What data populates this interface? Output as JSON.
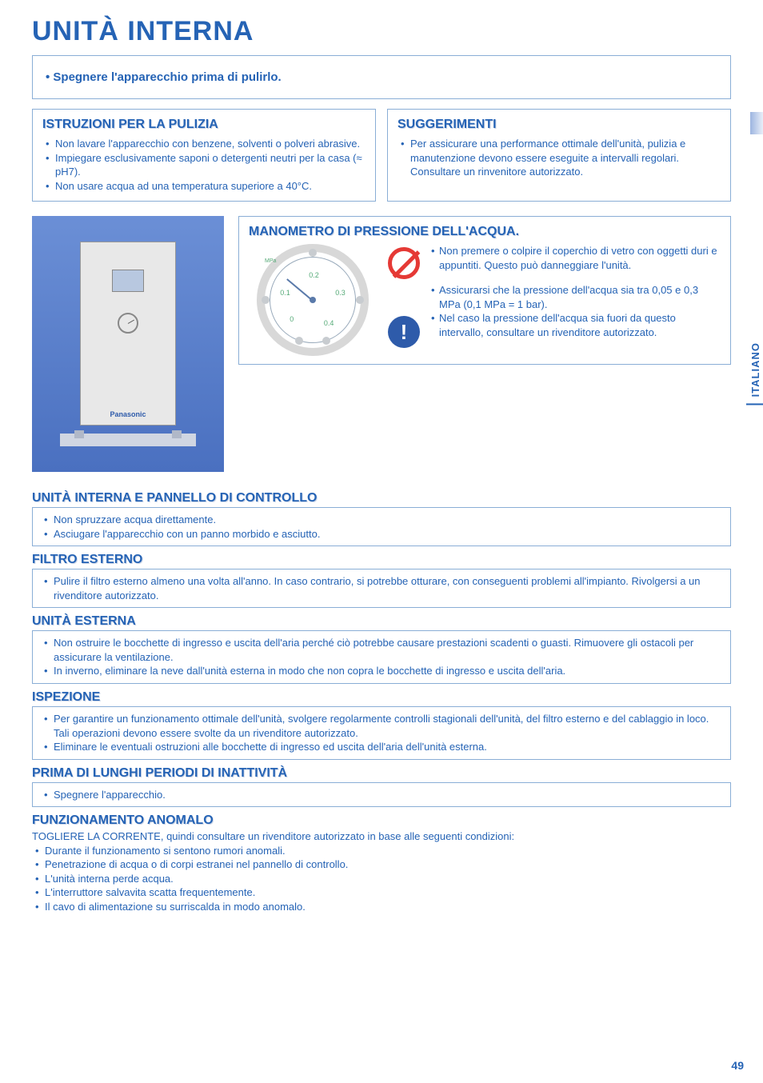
{
  "colors": {
    "blue": "#2563b5",
    "border": "#8aaed6",
    "red": "#e53935",
    "darkblue": "#2e5baa"
  },
  "fonts": {
    "body": 13,
    "title": 34,
    "section": 16
  },
  "mainTitle": "UNITÀ INTERNA",
  "notice": "Spegnere l'apparecchio prima di pulirlo.",
  "istruzioni": {
    "title": "ISTRUZIONI PER LA PULIZIA",
    "items": [
      "Non lavare l'apparecchio con benzene, solventi o polveri abrasive.",
      "Impiegare esclusivamente saponi o detergenti neutri per la casa (≈ pH7).",
      "Non usare acqua ad una temperatura superiore a 40°C."
    ]
  },
  "suggerimenti": {
    "title": "SUGGERIMENTI",
    "items": [
      "Per assicurare una performance ottimale dell'unità, pulizia e manutenzione devono essere eseguite a intervalli regolari. Consultare un rinvenitore autorizzato."
    ]
  },
  "device": {
    "brand": "Panasonic"
  },
  "manometro": {
    "title": "MANOMETRO DI PRESSIONE DELL'ACQUA.",
    "gauge": {
      "ticks": [
        "0",
        "0.1",
        "0.2",
        "0.3",
        "0.4"
      ],
      "unit": "MPa"
    },
    "warn1": "Non premere o colpire il coperchio di vetro con oggetti duri e appuntiti. Questo può danneggiare l'unità.",
    "warn2a": "Assicurarsi che la pressione dell'acqua sia tra 0,05 e 0,3 MPa (0,1 MPa = 1 bar).",
    "warn2b": "Nel caso la pressione dell'acqua sia fuori da questo intervallo, consultare un rivenditore autorizzato."
  },
  "sections": {
    "unitaPannello": {
      "title": "UNITÀ INTERNA E PANNELLO DI CONTROLLO",
      "items": [
        "Non spruzzare acqua direttamente.",
        "Asciugare l'apparecchio con un panno morbido e asciutto."
      ]
    },
    "filtro": {
      "title": "FILTRO ESTERNO",
      "items": [
        "Pulire il filtro esterno almeno una volta all'anno. In caso contrario, si potrebbe otturare, con conseguenti problemi all'impianto. Rivolgersi a un rivenditore autorizzato."
      ]
    },
    "esterna": {
      "title": "UNITÀ ESTERNA",
      "items": [
        "Non ostruire le bocchette di ingresso e uscita dell'aria perché ciò potrebbe causare prestazioni scadenti o guasti. Rimuovere gli ostacoli per assicurare la ventilazione.",
        "In inverno, eliminare la neve dall'unità esterna in modo che non copra le bocchette di ingresso e uscita dell'aria."
      ]
    },
    "ispezione": {
      "title": "ISPEZIONE",
      "items": [
        "Per garantire un funzionamento ottimale dell'unità, svolgere regolarmente controlli stagionali dell'unità, del filtro esterno e del cablaggio in loco. Tali operazioni devono essere svolte da un rivenditore autorizzato.",
        "Eliminare le eventuali ostruzioni alle bocchette di ingresso ed uscita dell'aria dell'unità esterna."
      ]
    },
    "inattivita": {
      "title": "PRIMA DI LUNGHI PERIODI DI INATTIVITÀ",
      "items": [
        "Spegnere l'apparecchio."
      ]
    },
    "anomalo": {
      "title": "FUNZIONAMENTO ANOMALO",
      "lead": "TOGLIERE LA CORRENTE, quindi consultare un rivenditore autorizzato in base alle seguenti condizioni:",
      "items": [
        "Durante il funzionamento si sentono rumori anomali.",
        "Penetrazione di acqua o di corpi estranei nel pannello di controllo.",
        "L'unità interna perde acqua.",
        "L'interruttore salvavita scatta frequentemente.",
        "Il cavo di alimentazione su surriscalda in modo anomalo."
      ]
    }
  },
  "sideTab": "ITALIANO",
  "pageNum": "49"
}
